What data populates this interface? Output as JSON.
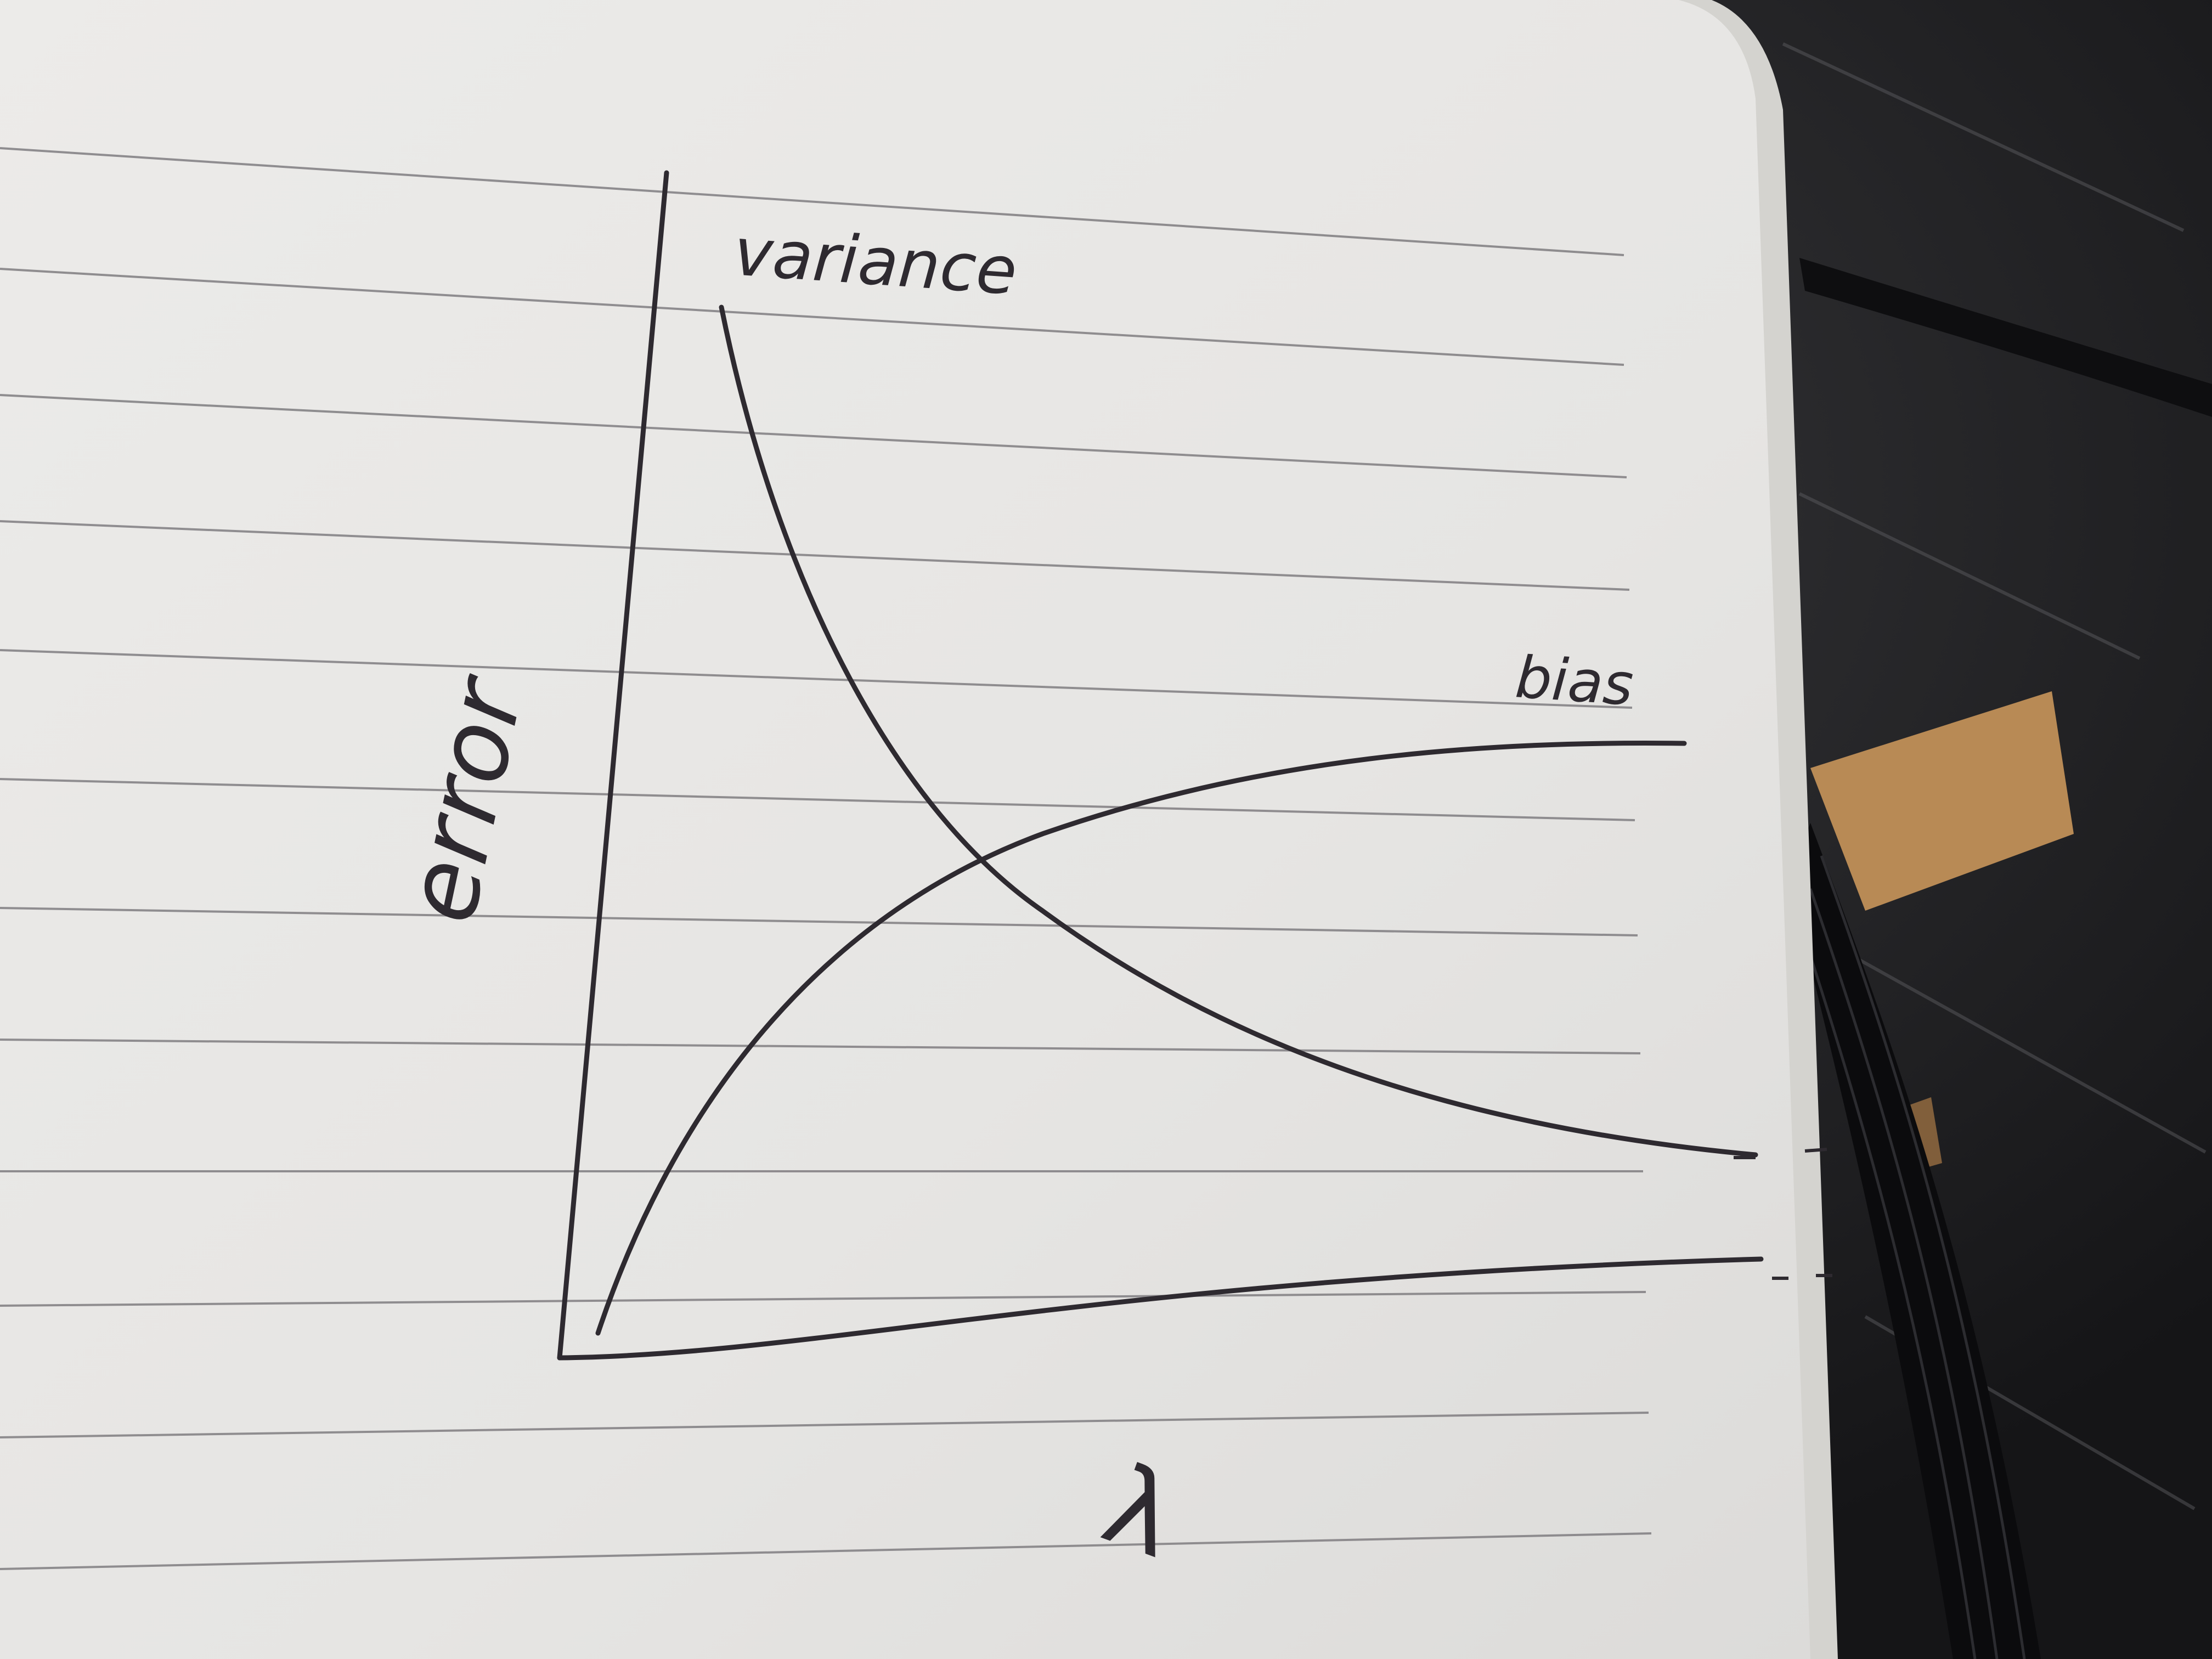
{
  "photo": {
    "subject": "notebook-sketch",
    "paper_color": "#e9e8e6",
    "ink_color": "#2e2a30",
    "rule_color": "#7f7d80",
    "table_color": "#1a1a1c",
    "wood_color": "#b88a55"
  },
  "sketch": {
    "ylabel": "error",
    "xlabel": "λ",
    "curve_labels": {
      "variance": "variance",
      "bias": "bias"
    }
  }
}
